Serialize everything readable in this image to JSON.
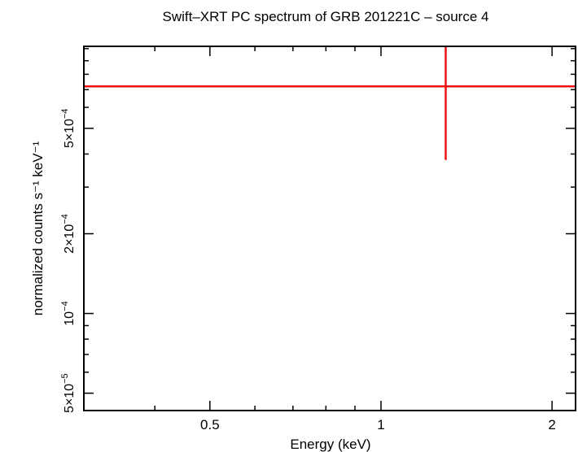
{
  "chart_data": {
    "type": "scatter",
    "title": "Swift–XRT PC spectrum of GRB 201221C – source 4",
    "xlabel": "Energy (keV)",
    "ylabel": "normalized counts s⁻¹ keV⁻¹",
    "x_scale": "log",
    "y_scale": "log",
    "xlim": [
      0.3,
      2.2
    ],
    "ylim": [
      4.3e-05,
      0.00102
    ],
    "x_ticks": [
      {
        "value": 0.5,
        "label": "0.5"
      },
      {
        "value": 1,
        "label": "1"
      },
      {
        "value": 2,
        "label": "2"
      }
    ],
    "y_ticks": [
      {
        "value": 5e-05,
        "mantissa": "5×10",
        "exponent": "−5"
      },
      {
        "value": 0.0001,
        "mantissa": "10",
        "exponent": "−4"
      },
      {
        "value": 0.0002,
        "mantissa": "2×10",
        "exponent": "−4"
      },
      {
        "value": 0.0005,
        "mantissa": "5×10",
        "exponent": "−4"
      }
    ],
    "series": [
      {
        "color": "#ee1111",
        "points": [
          {
            "x": 1.3,
            "x_low": 0.3,
            "x_high": 2.2,
            "y": 0.00072,
            "y_low": 0.00038,
            "y_high": 0.00102
          }
        ]
      }
    ],
    "grid": false,
    "legend": "none"
  }
}
